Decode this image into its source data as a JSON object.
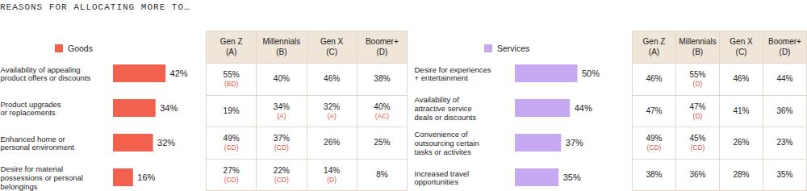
{
  "title": "REASONS FOR ALLOCATING MORE TO…",
  "chart_data": [
    {
      "type": "bar",
      "orientation": "horizontal",
      "data_labels": true,
      "tick_labels": false,
      "categories": [
        "Availability of appealing\nproduct offers or discounts",
        "Product upgrades\nor replacements",
        "Enhanced home or\npersonal environment",
        "Desire for material\npossessions or personal\nbelongings"
      ],
      "series": [
        {
          "name": "Goods",
          "color": "#f2604e",
          "values": [
            42,
            34,
            32,
            16
          ],
          "value_labels": [
            "42%",
            "34%",
            "32%",
            "16%"
          ]
        }
      ],
      "table": {
        "columns": [
          {
            "name": "Gen Z",
            "letter": "(A)"
          },
          {
            "name": "Millennials",
            "letter": "(B)"
          },
          {
            "name": "Gen X",
            "letter": "(C)"
          },
          {
            "name": "Boomer+",
            "letter": "(D)"
          }
        ],
        "rows": [
          {
            "values": [
              55,
              40,
              46,
              38
            ],
            "value_labels": [
              "55%",
              "40%",
              "46%",
              "38%"
            ],
            "notes": [
              "(BD)",
              null,
              null,
              null
            ]
          },
          {
            "values": [
              19,
              34,
              32,
              40
            ],
            "value_labels": [
              "19%",
              "34%",
              "32%",
              "40%"
            ],
            "notes": [
              null,
              "(A)",
              "(A)",
              "(AC)"
            ]
          },
          {
            "values": [
              49,
              37,
              26,
              25
            ],
            "value_labels": [
              "49%",
              "37%",
              "26%",
              "25%"
            ],
            "notes": [
              "(CD)",
              "(CD)",
              null,
              null
            ]
          },
          {
            "values": [
              27,
              22,
              14,
              8
            ],
            "value_labels": [
              "27%",
              "22%",
              "14%",
              "8%"
            ],
            "notes": [
              "(CD)",
              "(CD)",
              "(D)",
              null
            ]
          }
        ]
      }
    },
    {
      "type": "bar",
      "orientation": "horizontal",
      "data_labels": true,
      "tick_labels": false,
      "categories": [
        "Desire for experiences\n+ entertainment",
        "Availability of\nattractive service\ndeals or discounts",
        "Convenience of\noutsourcing certain\ntasks or activites",
        "Increased travel\nopportunities"
      ],
      "series": [
        {
          "name": "Services",
          "color": "#c7a9f2",
          "values": [
            50,
            44,
            37,
            35
          ],
          "value_labels": [
            "50%",
            "44%",
            "37%",
            "35%"
          ]
        }
      ],
      "table": {
        "columns": [
          {
            "name": "Gen Z",
            "letter": "(A)"
          },
          {
            "name": "Millennials",
            "letter": "(B)"
          },
          {
            "name": "Gen X",
            "letter": "(C)"
          },
          {
            "name": "Boomer+",
            "letter": "(D)"
          }
        ],
        "rows": [
          {
            "values": [
              46,
              55,
              46,
              44
            ],
            "value_labels": [
              "46%",
              "55%",
              "46%",
              "44%"
            ],
            "notes": [
              null,
              "(D)",
              null,
              null
            ]
          },
          {
            "values": [
              47,
              47,
              41,
              36
            ],
            "value_labels": [
              "47%",
              "47%",
              "41%",
              "36%"
            ],
            "notes": [
              null,
              "(D)",
              null,
              null
            ]
          },
          {
            "values": [
              49,
              45,
              26,
              23
            ],
            "value_labels": [
              "49%",
              "45%",
              "26%",
              "23%"
            ],
            "notes": [
              "(CD)",
              "(CD)",
              null,
              null
            ]
          },
          {
            "values": [
              38,
              36,
              28,
              35
            ],
            "value_labels": [
              "38%",
              "36%",
              "28%",
              "35%"
            ],
            "notes": [
              null,
              null,
              null,
              null
            ]
          }
        ]
      }
    }
  ]
}
